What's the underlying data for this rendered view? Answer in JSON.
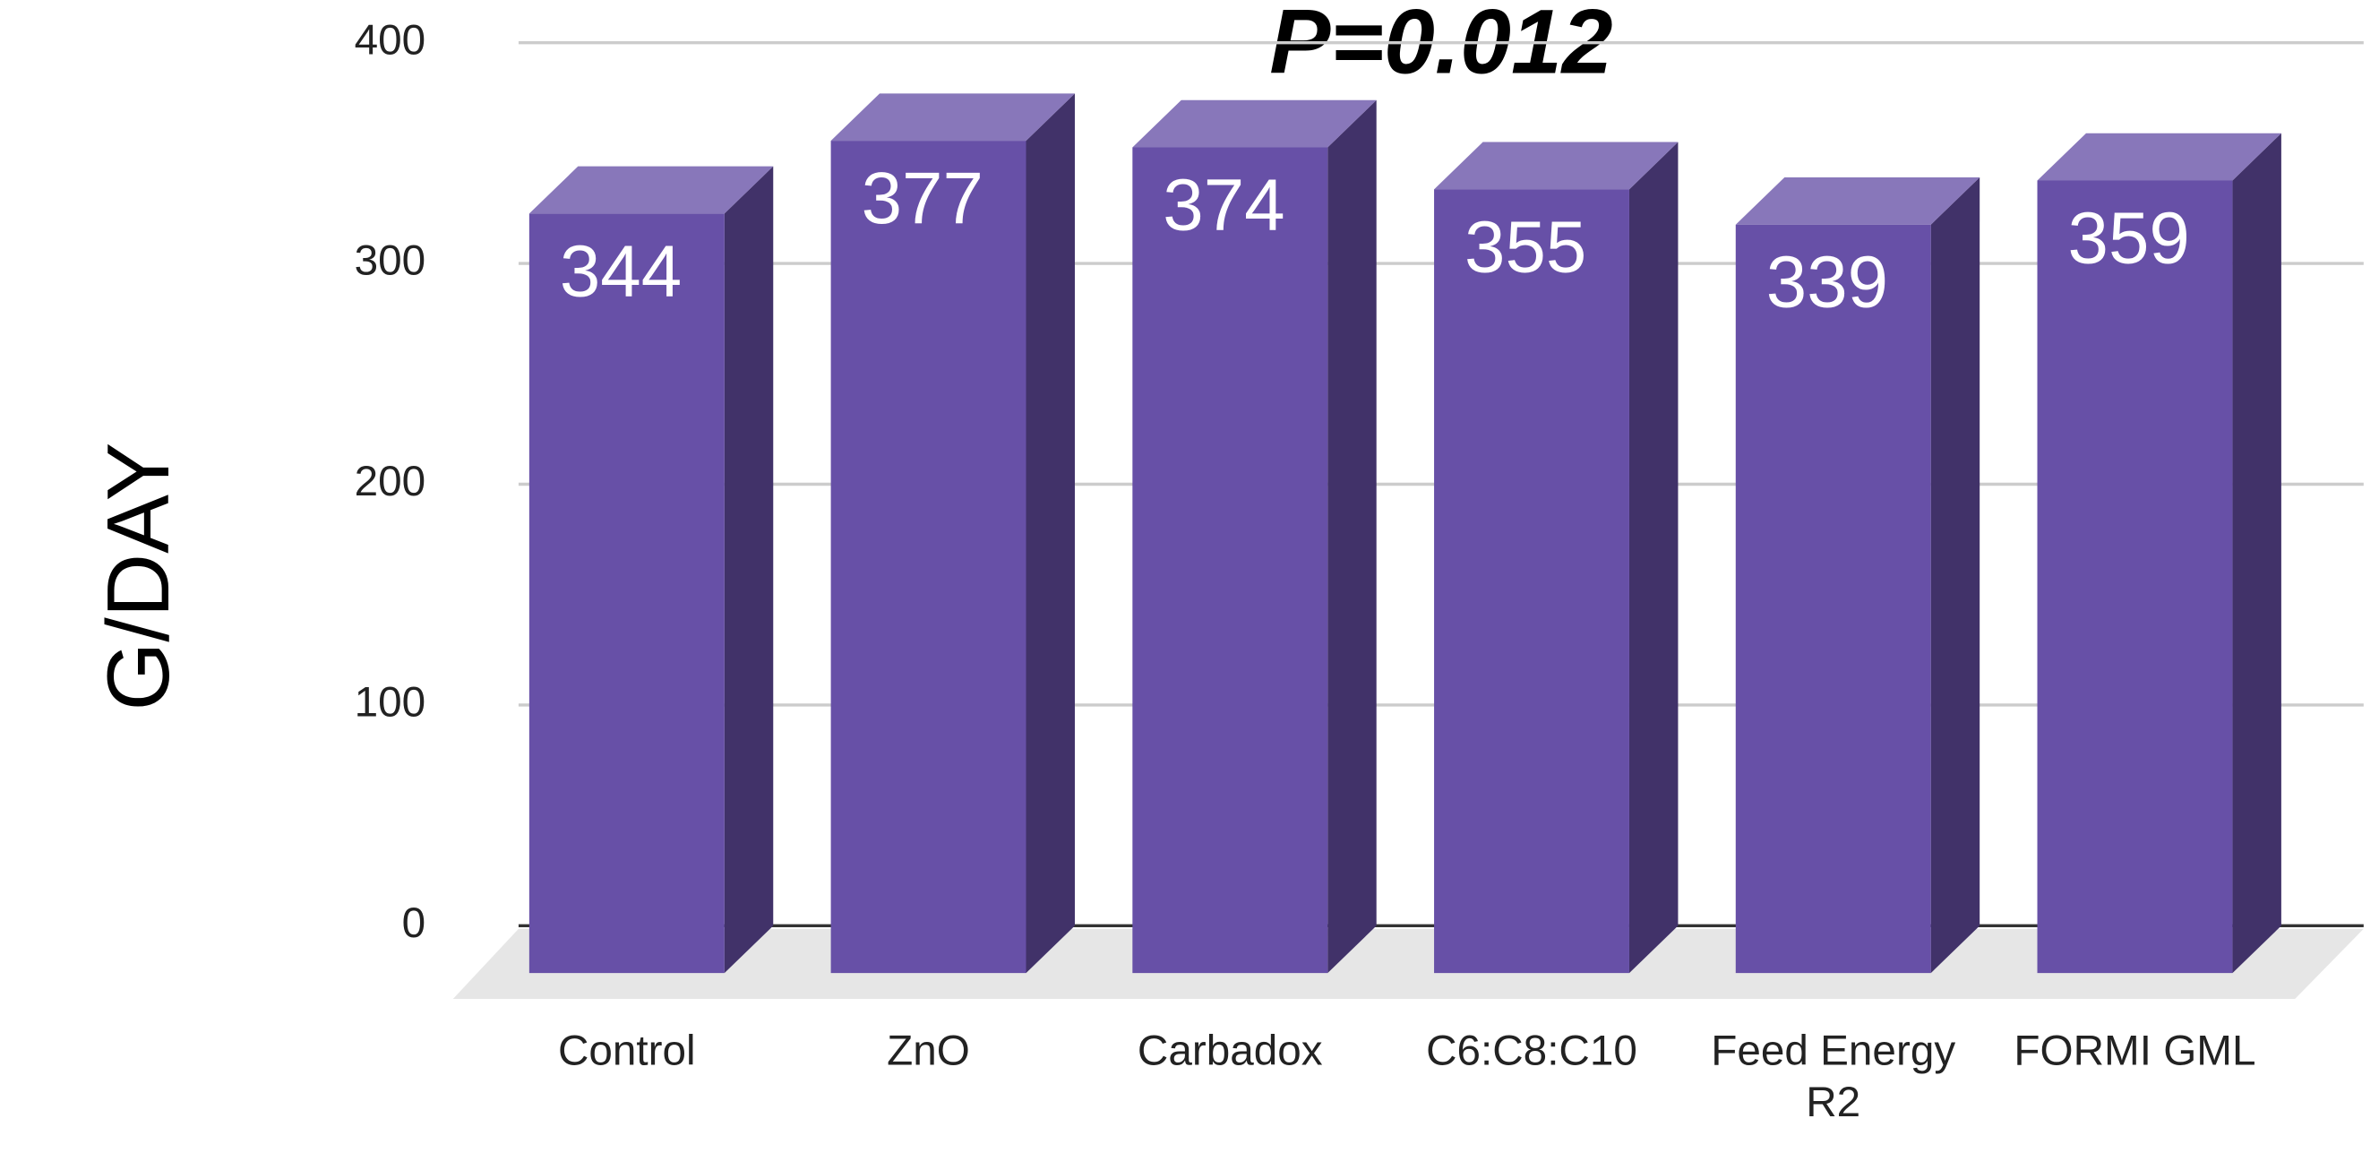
{
  "chart_data": {
    "type": "bar3d",
    "annotation": "P=0.012",
    "y_label": "G/DAY",
    "categories": [
      "Control",
      "ZnO",
      "Carbadox",
      "C6:C8:C10",
      "Feed Energy R2",
      "FORMI GML"
    ],
    "values": [
      344,
      377,
      374,
      355,
      339,
      359
    ],
    "color": "#6750a7",
    "ylim": [
      0,
      400
    ],
    "yticks": [
      0,
      100,
      200,
      300,
      400
    ],
    "grid": true
  }
}
